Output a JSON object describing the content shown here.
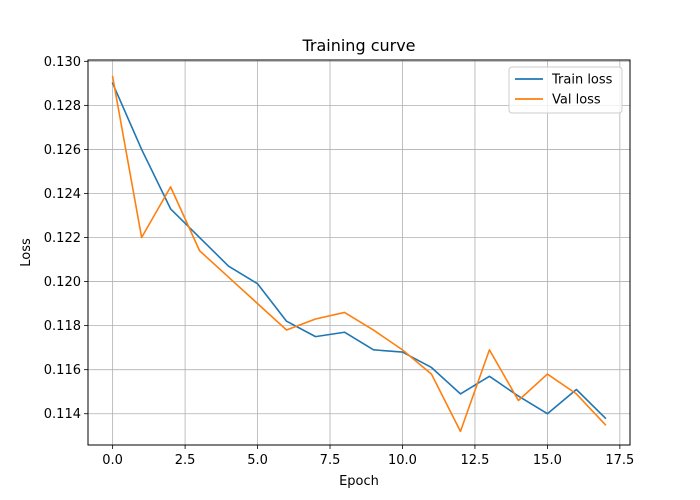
{
  "chart_data": {
    "type": "line",
    "title": "Training curve",
    "xlabel": "Epoch",
    "ylabel": "Loss",
    "x": [
      0,
      1,
      2,
      3,
      4,
      5,
      6,
      7,
      8,
      9,
      10,
      11,
      12,
      13,
      14,
      15,
      16,
      17
    ],
    "series": [
      {
        "name": "Train loss",
        "color": "#1f77b4",
        "values": [
          0.129,
          0.126,
          0.1233,
          0.122,
          0.1207,
          0.1199,
          0.1182,
          0.1175,
          0.1177,
          0.1169,
          0.1168,
          0.1161,
          0.1149,
          0.1157,
          0.1148,
          0.114,
          0.1151,
          0.1138
        ]
      },
      {
        "name": "Val loss",
        "color": "#ff7f0e",
        "values": [
          0.1293,
          0.122,
          0.1243,
          0.1214,
          0.1202,
          0.119,
          0.1178,
          0.1183,
          0.1186,
          0.1178,
          0.1169,
          0.1158,
          0.1132,
          0.1169,
          0.1146,
          0.1158,
          0.1149,
          0.1135
        ]
      }
    ],
    "xlim": [
      -0.85,
      17.85
    ],
    "ylim": [
      0.11258,
      0.13006
    ],
    "xticks": [
      0.0,
      2.5,
      5.0,
      7.5,
      10.0,
      12.5,
      15.0,
      17.5
    ],
    "xtick_labels": [
      "0.0",
      "2.5",
      "5.0",
      "7.5",
      "10.0",
      "12.5",
      "15.0",
      "17.5"
    ],
    "yticks": [
      0.114,
      0.116,
      0.118,
      0.12,
      0.122,
      0.124,
      0.126,
      0.128,
      0.13
    ],
    "ytick_labels": [
      "0.114",
      "0.116",
      "0.118",
      "0.120",
      "0.122",
      "0.124",
      "0.126",
      "0.128",
      "0.130"
    ],
    "grid": true,
    "legend_position": "upper right"
  }
}
